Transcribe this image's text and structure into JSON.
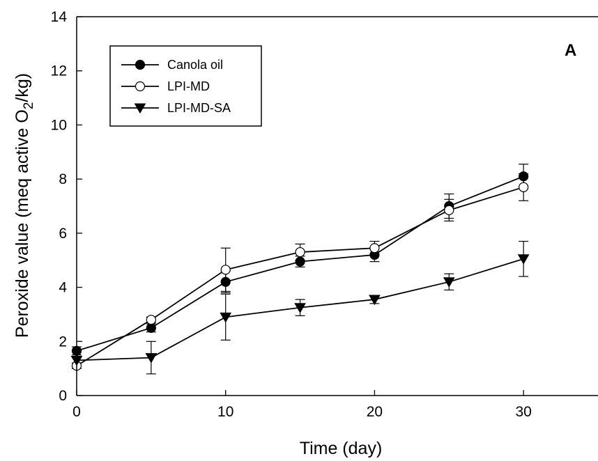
{
  "chart_data": {
    "type": "line",
    "panel_label": "A",
    "xlabel": "Time (day)",
    "ylabel": {
      "prefix": "Peroxide value (meq active O",
      "sub": "2",
      "suffix": "/kg)"
    },
    "xlim": [
      0,
      35
    ],
    "ylim": [
      0,
      14
    ],
    "x_ticks": [
      0,
      10,
      20,
      30
    ],
    "y_ticks": [
      0,
      2,
      4,
      6,
      8,
      10,
      12,
      14
    ],
    "legend_position": "top-left",
    "grid": false,
    "x": [
      0,
      5,
      10,
      15,
      20,
      25,
      30
    ],
    "series": [
      {
        "name": "Canola oil",
        "marker": "filled-circle",
        "color": "#000000",
        "values": [
          1.65,
          2.5,
          4.2,
          4.95,
          5.2,
          7.0,
          8.1
        ],
        "errors": [
          0.15,
          0.15,
          0.4,
          0.2,
          0.25,
          0.45,
          0.45
        ]
      },
      {
        "name": "LPI-MD",
        "marker": "open-circle",
        "color": "#000000",
        "values": [
          1.1,
          2.8,
          4.65,
          5.3,
          5.45,
          6.85,
          7.7
        ],
        "errors": [
          0.1,
          0.1,
          0.8,
          0.3,
          0.25,
          0.4,
          0.5
        ]
      },
      {
        "name": "LPI-MD-SA",
        "marker": "filled-triangle-down",
        "color": "#000000",
        "values": [
          1.3,
          1.4,
          2.9,
          3.25,
          3.55,
          4.2,
          5.05
        ],
        "errors": [
          0.1,
          0.6,
          0.85,
          0.3,
          0.15,
          0.3,
          0.65
        ]
      }
    ]
  }
}
